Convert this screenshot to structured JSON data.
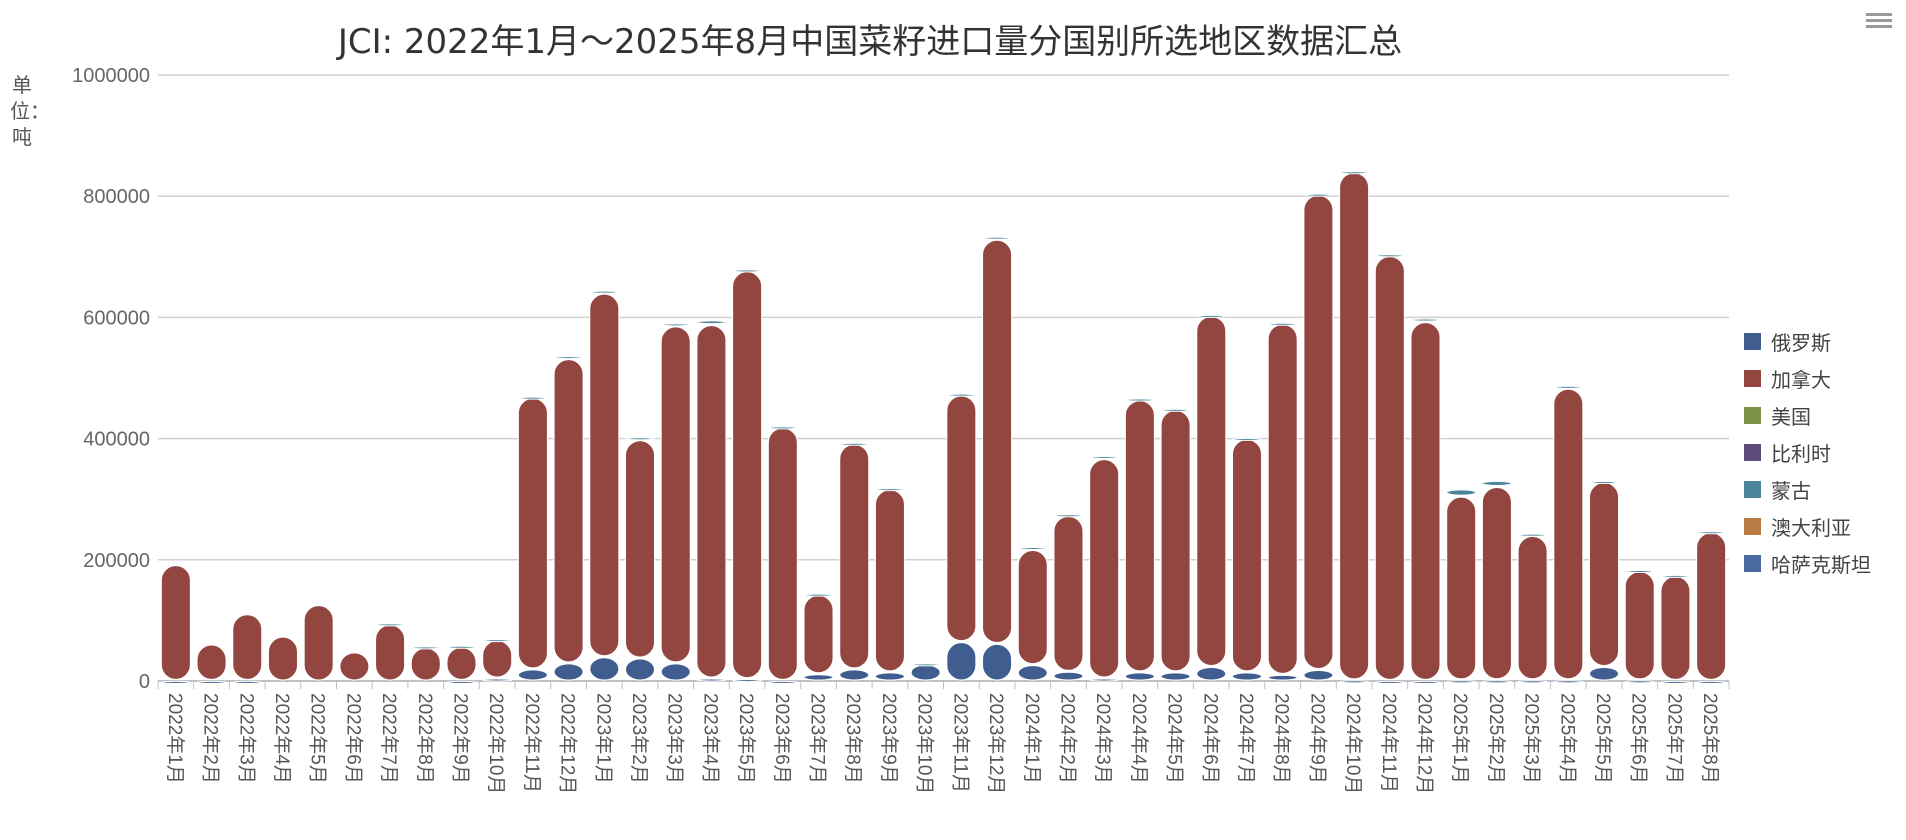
{
  "menu_icon": "hamburger-menu-icon",
  "chart_data": {
    "type": "bar",
    "stacked": true,
    "title": "JCI: 2022年1月～2025年8月中国菜籽进口量分国别所选地区数据汇总",
    "ylabel": "单位：吨",
    "ylim": [
      0,
      1000000
    ],
    "yticks": [
      "0",
      "200000",
      "400000",
      "600000",
      "800000",
      "1000000"
    ],
    "grid": true,
    "legend_position": "right",
    "categories": [
      "2022年1月",
      "2022年2月",
      "2022年3月",
      "2022年4月",
      "2022年5月",
      "2022年6月",
      "2022年7月",
      "2022年8月",
      "2022年9月",
      "2022年10月",
      "2022年11月",
      "2022年12月",
      "2023年1月",
      "2023年2月",
      "2023年3月",
      "2023年4月",
      "2023年5月",
      "2023年6月",
      "2023年7月",
      "2023年8月",
      "2023年9月",
      "2023年10月",
      "2023年11月",
      "2023年12月",
      "2024年1月",
      "2024年2月",
      "2024年3月",
      "2024年4月",
      "2024年5月",
      "2024年6月",
      "2024年7月",
      "2024年8月",
      "2024年9月",
      "2024年10月",
      "2024年11月",
      "2024年12月",
      "2025年1月",
      "2025年2月",
      "2025年3月",
      "2025年4月",
      "2025年5月",
      "2025年6月",
      "2025年7月",
      "2025年8月"
    ],
    "series": [
      {
        "name": "俄罗斯",
        "color": "#3f5e8f",
        "values": [
          1000,
          1000,
          1000,
          0,
          0,
          0,
          0,
          0,
          1000,
          5000,
          20000,
          30000,
          40000,
          38000,
          30000,
          5000,
          4000,
          1000,
          12000,
          20000,
          15000,
          28000,
          65000,
          62000,
          27000,
          16000,
          5000,
          15000,
          15000,
          24000,
          15000,
          11000,
          19000,
          2000,
          1000,
          1000,
          2000,
          2000,
          2000,
          2000,
          24000,
          2000,
          1000,
          1000
        ]
      },
      {
        "name": "加拿大",
        "color": "#934640",
        "values": [
          191000,
          60000,
          110000,
          74000,
          126000,
          48000,
          94000,
          56000,
          56000,
          63000,
          448000,
          502000,
          600000,
          360000,
          556000,
          583000,
          673000,
          418000,
          131000,
          372000,
          302000,
          0,
          407000,
          667000,
          190000,
          257000,
          362000,
          449000,
          433000,
          579000,
          385000,
          579000,
          784000,
          838000,
          701000,
          592000,
          303000,
          319000,
          238000,
          481000,
          305000,
          180000,
          173000,
          245000
        ]
      },
      {
        "name": "美国",
        "color": "#7a9148",
        "values": [
          0,
          0,
          0,
          0,
          0,
          0,
          0,
          0,
          0,
          0,
          0,
          0,
          0,
          0,
          0,
          0,
          0,
          0,
          0,
          0,
          0,
          0,
          0,
          0,
          0,
          0,
          0,
          0,
          0,
          0,
          0,
          0,
          0,
          0,
          0,
          0,
          0,
          0,
          0,
          0,
          0,
          0,
          0,
          0
        ]
      },
      {
        "name": "比利时",
        "color": "#5e4b7e",
        "values": [
          0,
          0,
          0,
          0,
          0,
          0,
          0,
          0,
          0,
          0,
          0,
          0,
          0,
          0,
          0,
          0,
          0,
          0,
          0,
          0,
          0,
          0,
          0,
          0,
          0,
          0,
          0,
          0,
          0,
          0,
          0,
          0,
          0,
          0,
          0,
          0,
          0,
          0,
          0,
          0,
          0,
          0,
          0,
          0
        ]
      },
      {
        "name": "蒙古",
        "color": "#4a8599",
        "values": [
          0,
          0,
          0,
          0,
          0,
          0,
          2000,
          2000,
          2000,
          2000,
          2000,
          5000,
          5000,
          5000,
          5000,
          8000,
          3000,
          2000,
          2000,
          2000,
          2000,
          2000,
          3000,
          5000,
          5000,
          3000,
          5000,
          3000,
          2000,
          2000,
          2000,
          2000,
          2000,
          2000,
          3000,
          6000,
          12000,
          10000,
          4000,
          5000,
          2000,
          2000,
          2000,
          2000
        ]
      },
      {
        "name": "澳大利亚",
        "color": "#b97b44",
        "values": [
          0,
          0,
          0,
          0,
          0,
          0,
          0,
          0,
          0,
          0,
          0,
          0,
          0,
          0,
          0,
          0,
          0,
          0,
          0,
          0,
          0,
          0,
          0,
          0,
          0,
          0,
          0,
          0,
          0,
          0,
          0,
          0,
          0,
          0,
          0,
          0,
          0,
          0,
          0,
          0,
          0,
          0,
          0,
          0
        ]
      },
      {
        "name": "哈萨克斯坦",
        "color": "#4a6aa0",
        "values": [
          0,
          0,
          0,
          0,
          0,
          0,
          0,
          0,
          0,
          0,
          0,
          0,
          0,
          0,
          0,
          0,
          0,
          0,
          0,
          0,
          0,
          0,
          0,
          0,
          0,
          0,
          0,
          0,
          0,
          0,
          0,
          0,
          0,
          0,
          0,
          0,
          0,
          0,
          0,
          0,
          0,
          0,
          0,
          0
        ]
      }
    ]
  }
}
